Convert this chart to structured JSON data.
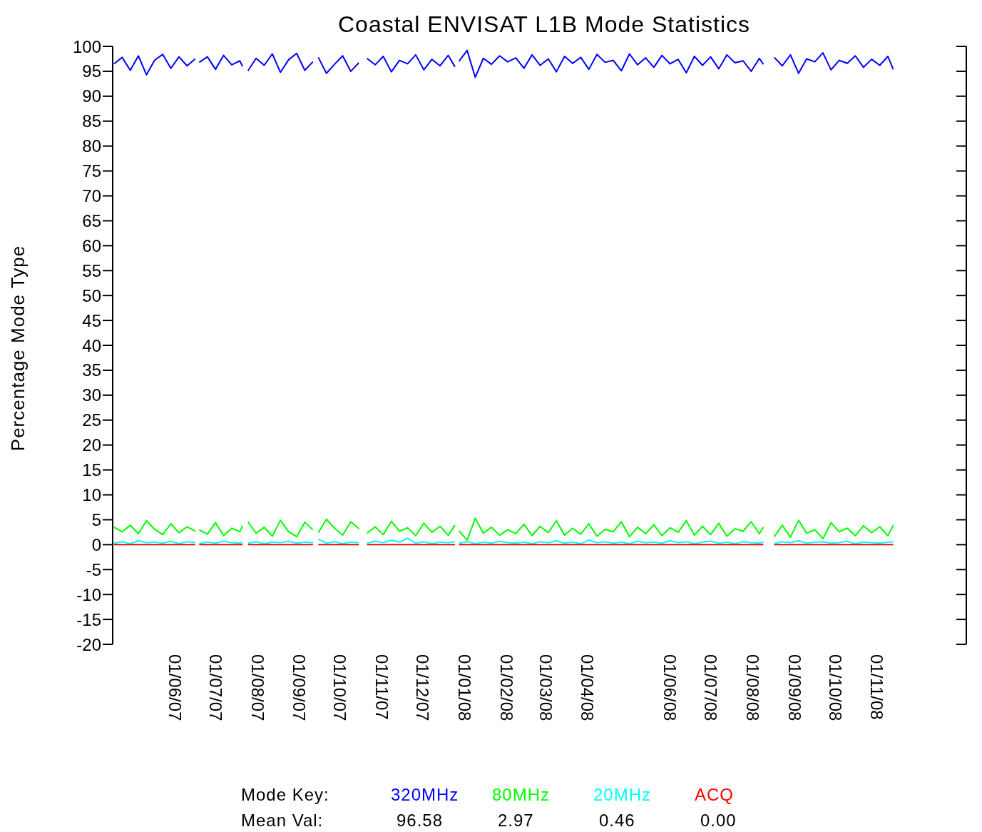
{
  "chart_data": {
    "type": "line",
    "title": "Coastal ENVISAT L1B Mode Statistics",
    "ylabel": "Percentage Mode Type",
    "legend": "bottom",
    "legend_title": "Mode Key:",
    "xlim": [
      "2007-04-16",
      "2009-01-06"
    ],
    "xticks": [
      {
        "value": "2007-06-01",
        "label": "01/06/07"
      },
      {
        "value": "2007-07-01",
        "label": "01/07/07"
      },
      {
        "value": "2007-08-01",
        "label": "01/08/07"
      },
      {
        "value": "2007-09-01",
        "label": "01/09/07"
      },
      {
        "value": "2007-10-01",
        "label": "01/10/07"
      },
      {
        "value": "2007-11-01",
        "label": "01/11/07"
      },
      {
        "value": "2007-12-01",
        "label": "01/12/07"
      },
      {
        "value": "2008-01-01",
        "label": "01/01/08"
      },
      {
        "value": "2008-02-01",
        "label": "01/02/08"
      },
      {
        "value": "2008-03-01",
        "label": "01/03/08"
      },
      {
        "value": "2008-04-01",
        "label": "01/04/08"
      },
      {
        "value": "2008-06-01",
        "label": "01/06/08"
      },
      {
        "value": "2008-07-01",
        "label": "01/07/08"
      },
      {
        "value": "2008-08-01",
        "label": "01/08/08"
      },
      {
        "value": "2008-09-01",
        "label": "01/09/08"
      },
      {
        "value": "2008-10-01",
        "label": "01/10/08"
      },
      {
        "value": "2008-11-01",
        "label": "01/11/08"
      }
    ],
    "ylim": [
      -20,
      100
    ],
    "yticks": [
      -20,
      -15,
      -10,
      -5,
      0,
      5,
      10,
      15,
      20,
      25,
      30,
      35,
      40,
      45,
      50,
      55,
      60,
      65,
      70,
      75,
      80,
      85,
      90,
      95,
      100
    ],
    "x": [
      "2007-04-17",
      "2007-04-23",
      "2007-04-29",
      "2007-05-05",
      "2007-05-11",
      "2007-05-17",
      "2007-05-23",
      "2007-05-29",
      "2007-06-04",
      "2007-06-10",
      "2007-06-16",
      "2007-06-17",
      "2007-06-19",
      "2007-06-25",
      "2007-07-01",
      "2007-07-07",
      "2007-07-13",
      "2007-07-19",
      "2007-07-21",
      "2007-07-22",
      "2007-07-25",
      "2007-07-31",
      "2007-08-06",
      "2007-08-12",
      "2007-08-18",
      "2007-08-24",
      "2007-08-30",
      "2007-09-05",
      "2007-09-11",
      "2007-09-13",
      "2007-09-15",
      "2007-09-21",
      "2007-09-27",
      "2007-10-03",
      "2007-10-09",
      "2007-10-15",
      "2007-10-19",
      "2007-10-21",
      "2007-10-27",
      "2007-11-02",
      "2007-11-08",
      "2007-11-14",
      "2007-11-20",
      "2007-11-26",
      "2007-12-02",
      "2007-12-08",
      "2007-12-14",
      "2007-12-20",
      "2007-12-25",
      "2007-12-26",
      "2007-12-28",
      "2008-01-03",
      "2008-01-09",
      "2008-01-15",
      "2008-01-21",
      "2008-01-27",
      "2008-02-02",
      "2008-02-08",
      "2008-02-14",
      "2008-02-20",
      "2008-02-26",
      "2008-03-03",
      "2008-03-09",
      "2008-03-15",
      "2008-03-21",
      "2008-03-27",
      "2008-04-02",
      "2008-04-08",
      "2008-04-14",
      "2008-04-20",
      "2008-04-26",
      "2008-05-02",
      "2008-05-08",
      "2008-05-14",
      "2008-05-20",
      "2008-05-26",
      "2008-06-01",
      "2008-06-07",
      "2008-06-13",
      "2008-06-19",
      "2008-06-25",
      "2008-07-01",
      "2008-07-07",
      "2008-07-13",
      "2008-07-19",
      "2008-07-25",
      "2008-07-31",
      "2008-08-06",
      "2008-08-09",
      "2008-08-13",
      "2008-08-17",
      "2008-08-23",
      "2008-08-29",
      "2008-09-04",
      "2008-09-10",
      "2008-09-16",
      "2008-09-22",
      "2008-09-28",
      "2008-10-04",
      "2008-10-10",
      "2008-10-16",
      "2008-10-22",
      "2008-10-28",
      "2008-11-03",
      "2008-11-09",
      "2008-11-13"
    ],
    "series": [
      {
        "name": "320MHz",
        "color": "#0000ff",
        "values": [
          96.5,
          97.8,
          95.2,
          98.1,
          94.3,
          97.2,
          98.4,
          95.6,
          97.9,
          96.1,
          97.5,
          null,
          96.8,
          97.9,
          95.4,
          98.2,
          96.3,
          97.1,
          96.0,
          null,
          95.1,
          97.6,
          96.2,
          98.5,
          94.8,
          97.3,
          98.6,
          95.2,
          96.9,
          null,
          97.8,
          94.6,
          96.4,
          98.1,
          95.0,
          96.7,
          null,
          97.6,
          96.3,
          98.0,
          94.9,
          97.2,
          96.5,
          98.3,
          95.3,
          97.4,
          96.1,
          98.2,
          95.9,
          null,
          97.0,
          99.2,
          93.8,
          97.6,
          96.4,
          98.1,
          96.9,
          97.7,
          95.6,
          98.3,
          96.2,
          97.5,
          94.9,
          98.0,
          96.6,
          97.8,
          95.4,
          98.4,
          96.8,
          97.2,
          95.1,
          98.5,
          96.3,
          97.7,
          95.8,
          98.2,
          96.5,
          97.4,
          94.7,
          98.0,
          96.2,
          97.9,
          95.5,
          98.3,
          96.7,
          97.1,
          95.0,
          97.6,
          96.4,
          null,
          97.8,
          96.1,
          98.3,
          94.6,
          97.5,
          96.9,
          98.7,
          95.3,
          97.2,
          96.6,
          98.1,
          95.8,
          97.4,
          96.2,
          98.0,
          95.4
        ]
      },
      {
        "name": "80MHz",
        "color": "#00ff00",
        "values": [
          3.5,
          2.6,
          3.9,
          2.2,
          4.8,
          3.1,
          2.0,
          4.2,
          2.4,
          3.6,
          2.7,
          null,
          3.0,
          2.1,
          4.4,
          1.8,
          3.3,
          2.6,
          3.8,
          null,
          4.6,
          2.3,
          3.5,
          1.7,
          4.9,
          2.6,
          1.6,
          4.5,
          3.0,
          null,
          2.4,
          5.1,
          3.3,
          1.9,
          4.6,
          3.2,
          null,
          2.3,
          3.6,
          2.0,
          4.7,
          2.7,
          3.4,
          1.8,
          4.3,
          2.5,
          3.7,
          1.9,
          3.9,
          null,
          2.8,
          0.9,
          5.3,
          2.3,
          3.5,
          1.9,
          3.0,
          2.2,
          4.1,
          1.8,
          3.7,
          2.4,
          4.8,
          1.9,
          3.3,
          2.1,
          4.2,
          1.7,
          3.1,
          2.6,
          4.6,
          1.6,
          3.5,
          2.2,
          4.0,
          1.8,
          3.4,
          2.5,
          4.8,
          1.9,
          3.7,
          2.0,
          4.3,
          1.7,
          3.2,
          2.7,
          4.6,
          2.2,
          3.5,
          null,
          1.6,
          3.9,
          1.5,
          4.9,
          2.3,
          3.0,
          1.2,
          4.4,
          2.6,
          3.3,
          1.8,
          3.8,
          2.4,
          3.6,
          1.8,
          3.9
        ]
      },
      {
        "name": "20MHz",
        "color": "#00ffff",
        "values": [
          0.3,
          0.6,
          0.2,
          0.8,
          0.4,
          0.5,
          0.3,
          0.7,
          0.2,
          0.6,
          0.4,
          null,
          0.2,
          0.5,
          0.3,
          0.7,
          0.4,
          0.3,
          0.5,
          null,
          0.3,
          0.6,
          0.2,
          0.5,
          0.4,
          0.7,
          0.3,
          0.5,
          0.4,
          null,
          1.1,
          0.3,
          0.6,
          0.2,
          0.5,
          0.4,
          null,
          0.3,
          0.7,
          0.4,
          0.9,
          0.5,
          1.3,
          0.3,
          0.6,
          0.2,
          0.5,
          0.4,
          0.6,
          null,
          0.3,
          0.6,
          0.2,
          0.5,
          0.3,
          0.7,
          0.4,
          0.3,
          0.5,
          0.2,
          0.6,
          0.4,
          0.8,
          0.3,
          0.5,
          0.2,
          0.9,
          0.4,
          0.6,
          0.3,
          0.5,
          0.2,
          0.7,
          0.4,
          0.5,
          0.3,
          0.8,
          0.4,
          0.6,
          0.2,
          0.5,
          0.7,
          0.3,
          0.5,
          0.2,
          0.6,
          0.4,
          0.3,
          0.5,
          null,
          0.2,
          0.6,
          0.4,
          0.8,
          0.3,
          0.5,
          0.6,
          0.3,
          0.4,
          0.7,
          0.2,
          0.5,
          0.4,
          0.3,
          0.5,
          0.6
        ]
      },
      {
        "name": "ACQ",
        "color": "#ff0000",
        "values": [
          0,
          0,
          0,
          0,
          0,
          0,
          0,
          0,
          0,
          0,
          0,
          null,
          0,
          0,
          0,
          0,
          0,
          0,
          0,
          null,
          0,
          0,
          0,
          0,
          0,
          0,
          0,
          0,
          0,
          null,
          0,
          0,
          0,
          0,
          0,
          0,
          null,
          0,
          0,
          0,
          0,
          0,
          0,
          0,
          0,
          0,
          0,
          0,
          0,
          null,
          0,
          0,
          0,
          0,
          0,
          0,
          0,
          0,
          0,
          0,
          0,
          0,
          0,
          0,
          0,
          0,
          0,
          0,
          0,
          0,
          0,
          0,
          0,
          0,
          0,
          0,
          0,
          0,
          0,
          0,
          0,
          0,
          0,
          0,
          0,
          0,
          0,
          0,
          0,
          null,
          0,
          0,
          0,
          0,
          0,
          0,
          0,
          0,
          0,
          0,
          0,
          0,
          0,
          0,
          0,
          0
        ]
      }
    ],
    "annotations": [
      "Mean Val:",
      "96.58",
      "2.97",
      "0.46",
      "0.00"
    ]
  }
}
